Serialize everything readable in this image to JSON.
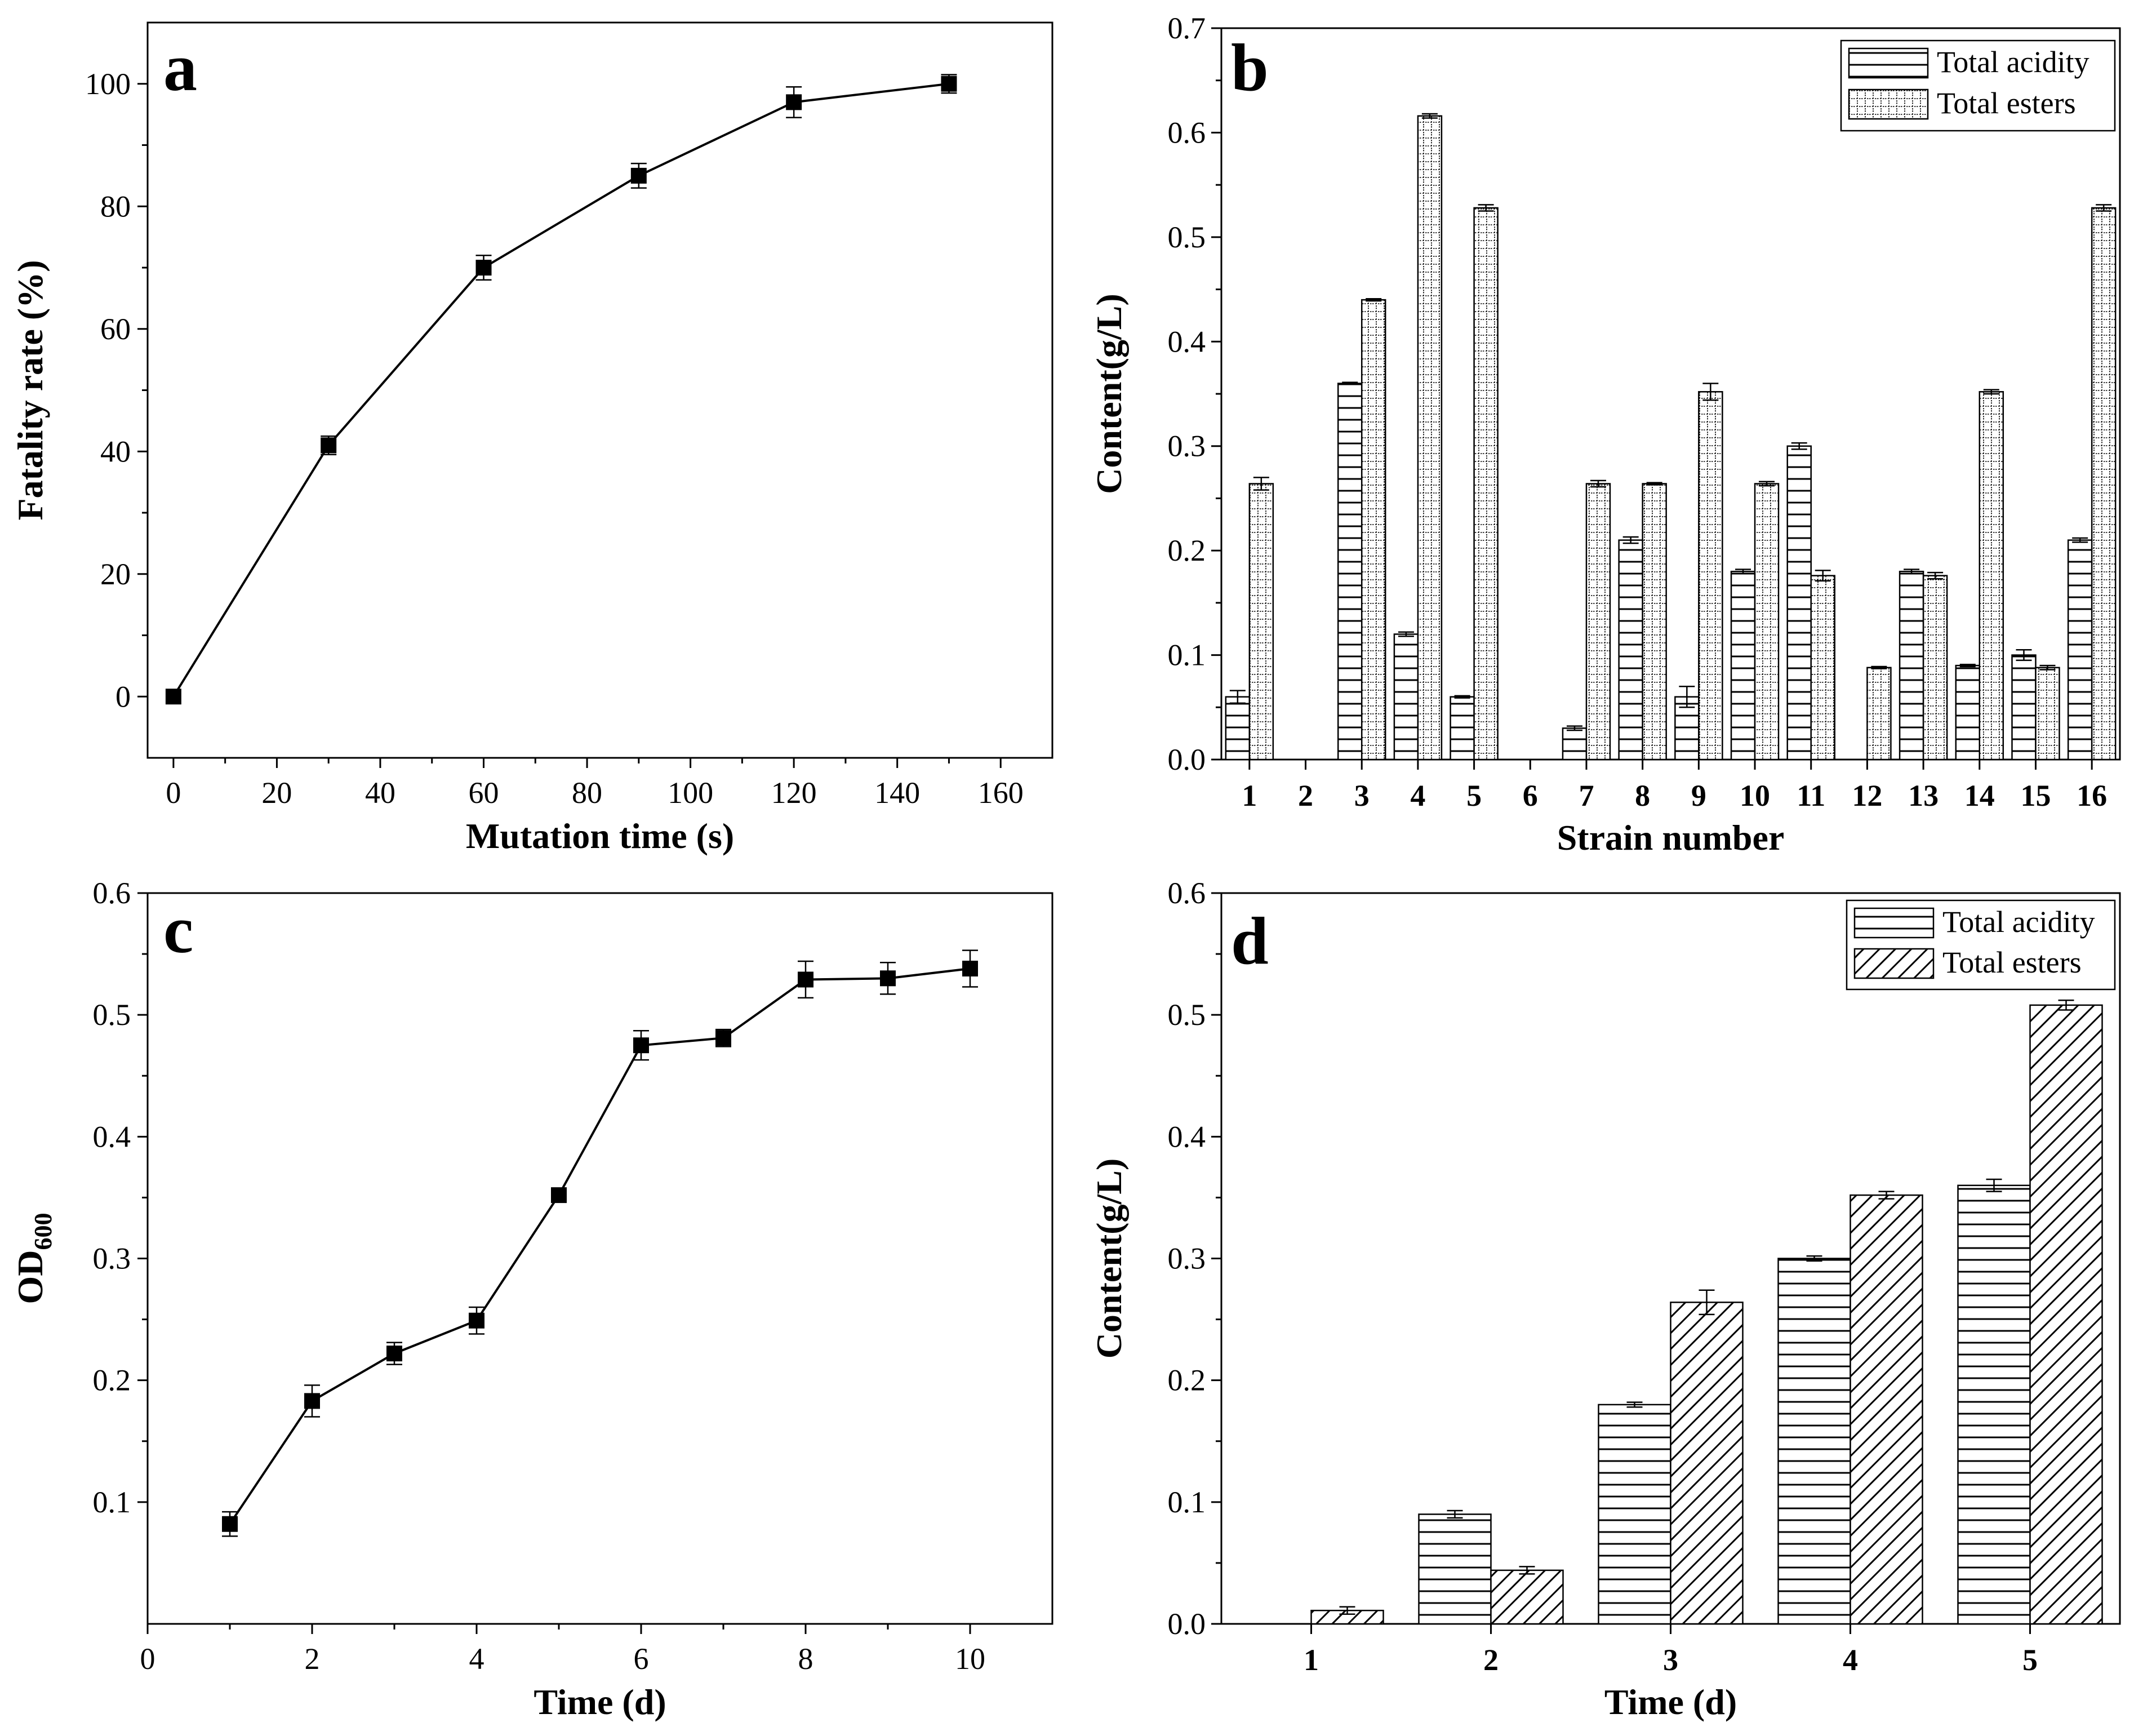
{
  "colors": {
    "ink": "#000000",
    "background": "#ffffff"
  },
  "chart_data": [
    {
      "panel": "a",
      "type": "line",
      "xlabel": "Mutation time (s)",
      "ylabel": "Fatality rate (%)",
      "xlim": [
        -5,
        170
      ],
      "ylim": [
        -10,
        110
      ],
      "xticks": [
        0,
        20,
        40,
        60,
        80,
        100,
        120,
        140,
        160
      ],
      "yticks": [
        0,
        20,
        40,
        60,
        80,
        100
      ],
      "x": [
        0,
        30,
        60,
        90,
        120,
        150
      ],
      "y": [
        0,
        41,
        70,
        85,
        97,
        100
      ],
      "err": [
        0,
        1.5,
        2,
        2,
        2.5,
        1.5
      ]
    },
    {
      "panel": "b",
      "type": "bar",
      "xlabel": "Strain number",
      "ylabel": "Content(g/L)",
      "ylim": [
        0,
        0.7
      ],
      "yticks": [
        "0.0",
        "0.1",
        "0.2",
        "0.3",
        "0.4",
        "0.5",
        "0.6",
        "0.7"
      ],
      "legend": "top-right",
      "categories": [
        "1",
        "2",
        "3",
        "4",
        "5",
        "6",
        "7",
        "8",
        "9",
        "10",
        "11",
        "12",
        "13",
        "14",
        "15",
        "16"
      ],
      "series": [
        {
          "name": "Total acidity",
          "pattern": "horizontal",
          "values": [
            0.06,
            0,
            0.36,
            0.12,
            0.06,
            0,
            0.03,
            0.21,
            0.06,
            0.18,
            0.3,
            0,
            0.18,
            0.09,
            0.1,
            0.21
          ],
          "err": [
            0.006,
            0,
            0.001,
            0.002,
            0.001,
            0,
            0.002,
            0.003,
            0.01,
            0.002,
            0.003,
            0,
            0.002,
            0.001,
            0.005,
            0.002
          ]
        },
        {
          "name": "Total esters",
          "pattern": "dotted-grid",
          "values": [
            0.264,
            0,
            0.44,
            0.616,
            0.528,
            0,
            0.264,
            0.264,
            0.352,
            0.264,
            0.176,
            0.088,
            0.176,
            0.352,
            0.088,
            0.528
          ],
          "err": [
            0.006,
            0,
            0.001,
            0.002,
            0.003,
            0,
            0.003,
            0.001,
            0.008,
            0.002,
            0.005,
            0.001,
            0.003,
            0.002,
            0.002,
            0.003
          ]
        }
      ]
    },
    {
      "panel": "c",
      "type": "line",
      "xlabel": "Time (d)",
      "ylabel": "OD",
      "ylabel_sub": "600",
      "xlim": [
        0,
        11
      ],
      "ylim": [
        0,
        0.6
      ],
      "xticks": [
        0,
        2,
        4,
        6,
        8,
        10
      ],
      "yticks": [
        "0.1",
        "0.2",
        "0.3",
        "0.4",
        "0.5",
        "0.6"
      ],
      "x": [
        1,
        2,
        3,
        4,
        5,
        6,
        7,
        8,
        9,
        10
      ],
      "y": [
        0.082,
        0.183,
        0.222,
        0.249,
        0.352,
        0.475,
        0.481,
        0.529,
        0.53,
        0.538
      ],
      "err": [
        0.01,
        0.013,
        0.009,
        0.011,
        0.005,
        0.012,
        0.007,
        0.015,
        0.013,
        0.015
      ]
    },
    {
      "panel": "d",
      "type": "bar",
      "xlabel": "Time (d)",
      "ylabel": "Content(g/L)",
      "ylim": [
        0,
        0.6
      ],
      "yticks": [
        "0.0",
        "0.1",
        "0.2",
        "0.3",
        "0.4",
        "0.5",
        "0.6"
      ],
      "legend": "top-right",
      "categories": [
        "1",
        "2",
        "3",
        "4",
        "5"
      ],
      "series": [
        {
          "name": "Total acidity",
          "pattern": "horizontal",
          "values": [
            0,
            0.09,
            0.18,
            0.3,
            0.36
          ],
          "err": [
            0,
            0.003,
            0.002,
            0.002,
            0.005
          ]
        },
        {
          "name": "Total esters",
          "pattern": "diagonal",
          "values": [
            0.011,
            0.044,
            0.264,
            0.352,
            0.508
          ],
          "err": [
            0.003,
            0.003,
            0.01,
            0.003,
            0.004
          ]
        }
      ]
    }
  ]
}
